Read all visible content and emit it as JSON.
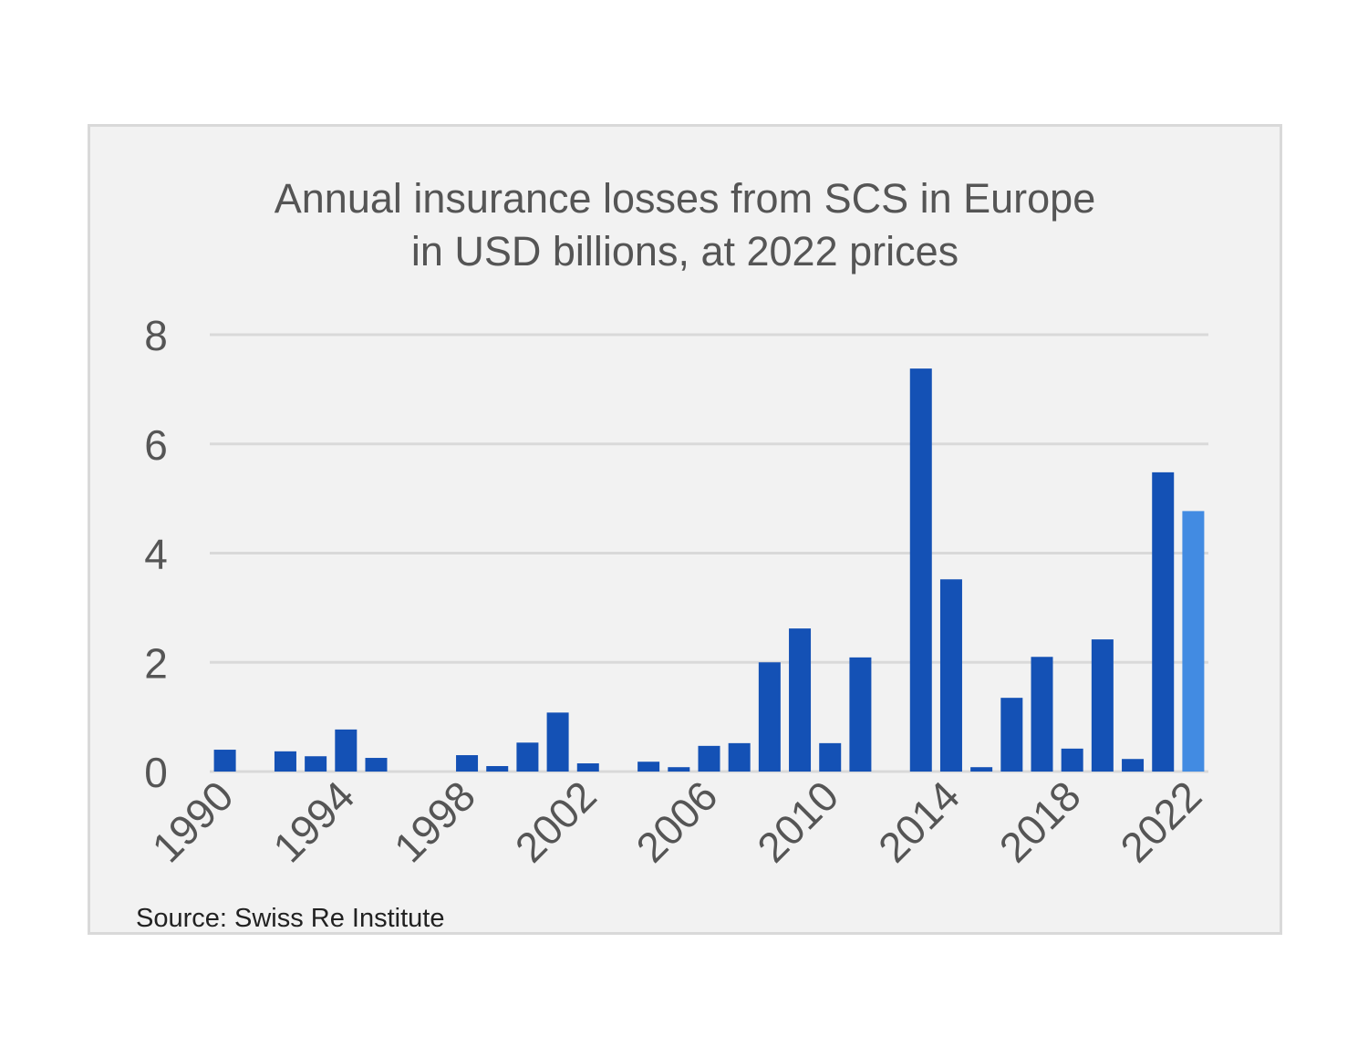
{
  "chart_data": {
    "type": "bar",
    "title": "Annual insurance losses from SCS in Europe",
    "subtitle": "in USD billions, at 2022 prices",
    "source": "Source: Swiss Re Institute",
    "xlabel": "",
    "ylabel": "",
    "ylim": [
      0,
      8
    ],
    "yticks": [
      "0",
      "2",
      "4",
      "6",
      "8"
    ],
    "xtick_labels": [
      "1990",
      "1994",
      "1998",
      "2002",
      "2006",
      "2010",
      "2014",
      "2018",
      "2022"
    ],
    "grid": true,
    "categories": [
      1990,
      1991,
      1992,
      1993,
      1994,
      1995,
      1996,
      1997,
      1998,
      1999,
      2000,
      2001,
      2002,
      2003,
      2004,
      2005,
      2006,
      2007,
      2008,
      2009,
      2010,
      2011,
      2012,
      2013,
      2014,
      2015,
      2016,
      2017,
      2018,
      2019,
      2020,
      2021,
      2022
    ],
    "values": [
      0.4,
      0,
      0.37,
      0.28,
      0.77,
      0.25,
      0,
      0,
      0.3,
      0.1,
      0.53,
      1.08,
      0.15,
      0,
      0.18,
      0.08,
      0.47,
      0.52,
      2.0,
      2.62,
      0.52,
      2.09,
      0,
      7.38,
      3.52,
      0.08,
      1.35,
      2.1,
      0.42,
      2.42,
      0.23,
      5.48,
      4.77
    ],
    "colors": {
      "bar": "#1451b5",
      "highlight": "#428be2",
      "grid": "#d9d9d9",
      "axis_text": "#555555"
    },
    "highlight_category": 2022
  }
}
